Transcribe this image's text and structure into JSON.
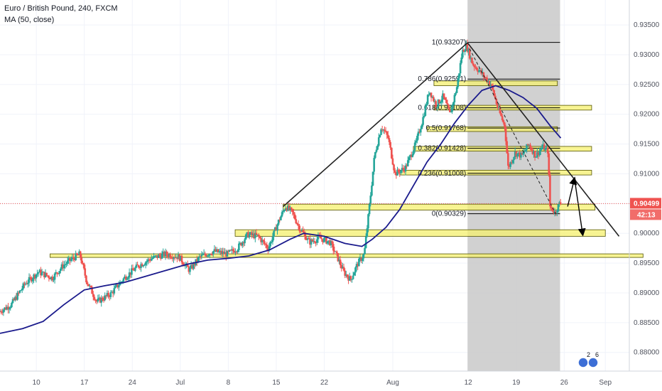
{
  "legend": {
    "title": "Euro / British Pound, 240, FXCM",
    "indicator": "MA (50, close)"
  },
  "colors": {
    "up": "#26a69a",
    "down": "#ef5350",
    "ma": "#1a1a8c",
    "zone": "#f5f06e",
    "zone_border": "#555500",
    "fib_shade": "#c9c9c9",
    "price_tag": "#ef5350",
    "countdown_tag": "#ef5350",
    "trendline": "#222222"
  },
  "badge": {
    "numbers": [
      "2",
      "6"
    ]
  },
  "chart_data": {
    "type": "candlestick",
    "instrument": "Euro / British Pound",
    "timeframe": "240",
    "source": "FXCM",
    "indicator": "MA (50, close)",
    "y_ticks": [
      "0.93500",
      "0.93000",
      "0.92500",
      "0.92000",
      "0.91500",
      "0.91000",
      "0.90500",
      "0.90000",
      "0.89500",
      "0.89000",
      "0.88500",
      "0.88000"
    ],
    "ylim": [
      0.8765,
      0.9368
    ],
    "x_ticks": [
      {
        "label": "10",
        "day": 10
      },
      {
        "label": "17",
        "day": 17
      },
      {
        "label": "24",
        "day": 24
      },
      {
        "label": "Jul",
        "day": 31
      },
      {
        "label": "8",
        "day": 38
      },
      {
        "label": "15",
        "day": 45
      },
      {
        "label": "22",
        "day": 52
      },
      {
        "label": "Aug",
        "day": 62
      },
      {
        "label": "12",
        "day": 73
      },
      {
        "label": "19",
        "day": 80
      },
      {
        "label": "26",
        "day": 87
      },
      {
        "label": "Sep",
        "day": 93
      }
    ],
    "xlim": [
      4.7,
      96.5
    ],
    "last_price": "0.90499",
    "countdown": "42:13",
    "anchors": [
      [
        4.7,
        0.8868
      ],
      [
        6.5,
        0.888
      ],
      [
        8.5,
        0.8915
      ],
      [
        10.5,
        0.8935
      ],
      [
        12.5,
        0.8925
      ],
      [
        14.0,
        0.8945
      ],
      [
        15.5,
        0.8958
      ],
      [
        16.5,
        0.8965
      ],
      [
        17.5,
        0.892
      ],
      [
        19.0,
        0.8885
      ],
      [
        21.0,
        0.8898
      ],
      [
        23.0,
        0.8925
      ],
      [
        25.0,
        0.8945
      ],
      [
        27.0,
        0.8958
      ],
      [
        29.0,
        0.8965
      ],
      [
        31.0,
        0.896
      ],
      [
        32.5,
        0.8938
      ],
      [
        34.0,
        0.896
      ],
      [
        36.0,
        0.897
      ],
      [
        38.0,
        0.8965
      ],
      [
        39.5,
        0.8975
      ],
      [
        41.0,
        0.8998
      ],
      [
        42.5,
        0.8995
      ],
      [
        44.0,
        0.8975
      ],
      [
        45.5,
        0.902
      ],
      [
        46.5,
        0.9045
      ],
      [
        47.5,
        0.9035
      ],
      [
        48.5,
        0.901
      ],
      [
        50.0,
        0.8985
      ],
      [
        51.5,
        0.8992
      ],
      [
        53.0,
        0.8985
      ],
      [
        54.0,
        0.8962
      ],
      [
        55.0,
        0.8935
      ],
      [
        56.0,
        0.8922
      ],
      [
        57.0,
        0.8948
      ],
      [
        58.0,
        0.8965
      ],
      [
        58.8,
        0.905
      ],
      [
        59.5,
        0.913
      ],
      [
        60.5,
        0.918
      ],
      [
        61.5,
        0.916
      ],
      [
        62.5,
        0.91
      ],
      [
        64.0,
        0.911
      ],
      [
        65.5,
        0.915
      ],
      [
        66.5,
        0.919
      ],
      [
        67.5,
        0.924
      ],
      [
        68.5,
        0.9215
      ],
      [
        69.5,
        0.923
      ],
      [
        70.5,
        0.92
      ],
      [
        71.5,
        0.9245
      ],
      [
        72.3,
        0.9305
      ],
      [
        72.9,
        0.9315
      ],
      [
        73.8,
        0.9285
      ],
      [
        75.0,
        0.927
      ],
      [
        76.5,
        0.925
      ],
      [
        77.5,
        0.921
      ],
      [
        78.5,
        0.918
      ],
      [
        79.0,
        0.911
      ],
      [
        80.0,
        0.9135
      ],
      [
        81.0,
        0.913
      ],
      [
        82.0,
        0.915
      ],
      [
        83.0,
        0.913
      ],
      [
        84.0,
        0.9145
      ],
      [
        84.8,
        0.9138
      ],
      [
        85.1,
        0.9045
      ],
      [
        85.8,
        0.9035
      ],
      [
        86.5,
        0.905
      ]
    ],
    "moving_average": [
      [
        4.7,
        0.8832
      ],
      [
        8.0,
        0.884
      ],
      [
        11.0,
        0.8852
      ],
      [
        14.0,
        0.888
      ],
      [
        17.0,
        0.8905
      ],
      [
        20.0,
        0.8912
      ],
      [
        23.0,
        0.8918
      ],
      [
        26.0,
        0.8928
      ],
      [
        29.0,
        0.8938
      ],
      [
        32.0,
        0.8948
      ],
      [
        35.0,
        0.8955
      ],
      [
        38.0,
        0.8958
      ],
      [
        41.0,
        0.8962
      ],
      [
        44.0,
        0.8972
      ],
      [
        47.0,
        0.899
      ],
      [
        49.0,
        0.9
      ],
      [
        52.0,
        0.8995
      ],
      [
        55.0,
        0.8983
      ],
      [
        57.5,
        0.8978
      ],
      [
        59.0,
        0.899
      ],
      [
        61.0,
        0.901
      ],
      [
        63.0,
        0.904
      ],
      [
        65.0,
        0.908
      ],
      [
        67.0,
        0.912
      ],
      [
        69.0,
        0.915
      ],
      [
        71.0,
        0.9185
      ],
      [
        73.0,
        0.9215
      ],
      [
        75.0,
        0.924
      ],
      [
        77.0,
        0.9248
      ],
      [
        79.0,
        0.924
      ],
      [
        81.0,
        0.9228
      ],
      [
        83.0,
        0.921
      ],
      [
        85.0,
        0.918
      ],
      [
        86.5,
        0.916
      ]
    ],
    "fib_range": {
      "start_day": 72.9,
      "end_day": 85.5,
      "shade_end_day": 86.4
    },
    "fib_levels": [
      {
        "ratio": "1",
        "label": "1(0.93207)",
        "value": 0.93207
      },
      {
        "ratio": "0.786",
        "label": "0.786(0.92591)",
        "value": 0.92591
      },
      {
        "ratio": "0.618",
        "label": "0.618(0.92108)",
        "value": 0.92108
      },
      {
        "ratio": "0.5",
        "label": "0.5(0.91768)",
        "value": 0.91768
      },
      {
        "ratio": "0.382",
        "label": "0.382(0.91428)",
        "value": 0.91428
      },
      {
        "ratio": "0.236",
        "label": "0.236(0.91008)",
        "value": 0.91008
      },
      {
        "ratio": "0",
        "label": "0(0.90329)",
        "value": 0.90329
      }
    ],
    "zones": [
      {
        "start_day": 12.0,
        "end_day": 98.5,
        "low": 0.89595,
        "high": 0.89655
      },
      {
        "start_day": 39.0,
        "end_day": 93.0,
        "low": 0.8995,
        "high": 0.9006
      },
      {
        "start_day": 46.0,
        "end_day": 91.5,
        "low": 0.9039,
        "high": 0.9049
      },
      {
        "start_day": 63.0,
        "end_day": 91.0,
        "low": 0.9098,
        "high": 0.9106
      },
      {
        "start_day": 65.0,
        "end_day": 91.0,
        "low": 0.9138,
        "high": 0.9146
      },
      {
        "start_day": 67.0,
        "end_day": 86.0,
        "low": 0.9171,
        "high": 0.9179
      },
      {
        "start_day": 68.0,
        "end_day": 91.0,
        "low": 0.9207,
        "high": 0.9215
      },
      {
        "start_day": 68.0,
        "end_day": 86.0,
        "low": 0.9248,
        "high": 0.9256
      }
    ],
    "trendlines": [
      {
        "from": [
          46.0,
          0.9045
        ],
        "to": [
          72.9,
          0.932
        ],
        "style": "solid"
      },
      {
        "from": [
          72.9,
          0.932
        ],
        "to": [
          95.0,
          0.8995
        ],
        "style": "solid"
      },
      {
        "from": [
          73.2,
          0.931
        ],
        "to": [
          85.8,
          0.9032
        ],
        "style": "dashed"
      }
    ],
    "arrows": [
      {
        "from": [
          87.5,
          0.9045
        ],
        "to": [
          88.5,
          0.9092
        ]
      },
      {
        "from": [
          88.5,
          0.9092
        ],
        "to": [
          89.7,
          0.8998
        ]
      }
    ]
  }
}
